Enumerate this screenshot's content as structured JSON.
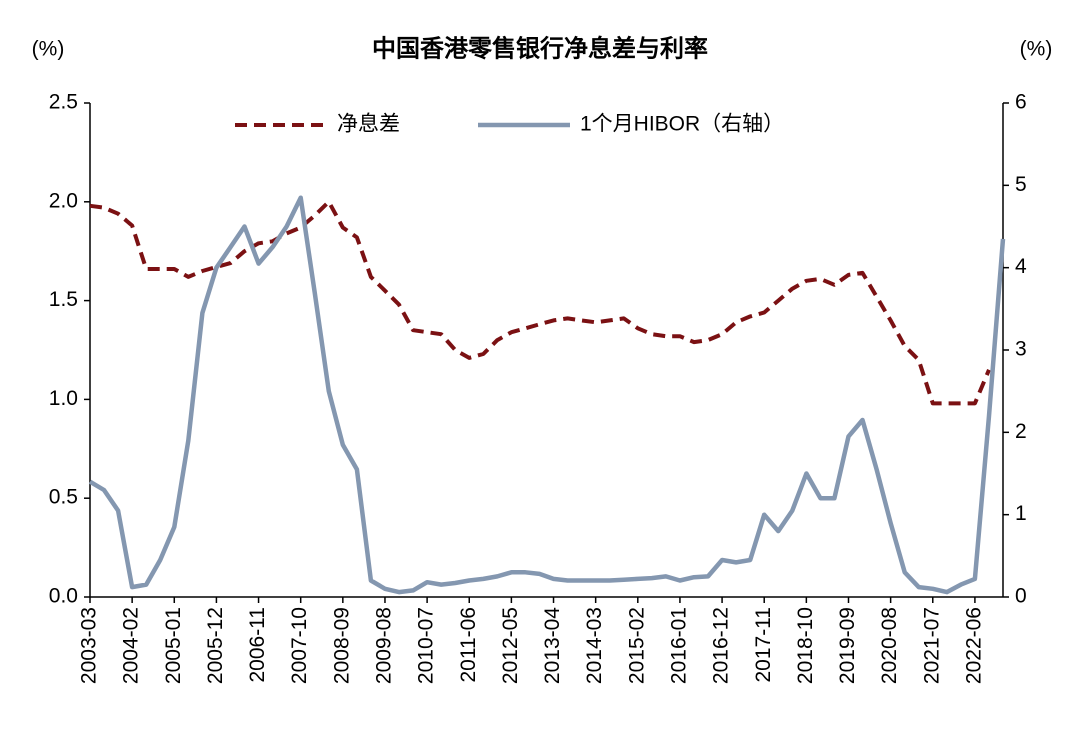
{
  "chart_data": {
    "type": "line",
    "title": "中国香港零售银行净息差与利率",
    "y_label": "(%)",
    "y2_label": "(%)",
    "categories": [
      "2003-03",
      null,
      null,
      "2004-02",
      null,
      null,
      "2005-01",
      null,
      null,
      "2005-12",
      null,
      null,
      "2006-11",
      null,
      null,
      "2007-10",
      null,
      null,
      "2008-09",
      null,
      null,
      "2009-08",
      null,
      null,
      "2010-07",
      null,
      null,
      "2011-06",
      null,
      null,
      "2012-05",
      null,
      null,
      "2013-04",
      null,
      null,
      "2014-03",
      null,
      null,
      "2015-02",
      null,
      null,
      "2016-01",
      null,
      null,
      "2016-12",
      null,
      null,
      "2017-11",
      null,
      null,
      "2018-10",
      null,
      null,
      "2019-09",
      null,
      null,
      "2020-08",
      null,
      null,
      "2021-07",
      null,
      null,
      "2022-06",
      null,
      null
    ],
    "series": [
      {
        "name": "净息差",
        "color": "#7b1113",
        "dashed": true,
        "values": [
          1.98,
          1.97,
          1.94,
          1.88,
          1.66,
          1.66,
          1.66,
          1.62,
          1.65,
          1.67,
          1.69,
          1.75,
          1.79,
          1.8,
          1.84,
          1.87,
          1.93,
          2.0,
          1.87,
          1.82,
          1.62,
          1.55,
          1.48,
          1.35,
          1.34,
          1.33,
          1.25,
          1.21,
          1.23,
          1.3,
          1.34,
          1.36,
          1.38,
          1.4,
          1.41,
          1.4,
          1.39,
          1.4,
          1.41,
          1.36,
          1.33,
          1.32,
          1.32,
          1.29,
          1.3,
          1.33,
          1.39,
          1.42,
          1.44,
          1.5,
          1.56,
          1.6,
          1.61,
          1.58,
          1.63,
          1.64,
          1.52,
          1.4,
          1.27,
          1.2,
          0.98,
          0.98,
          0.98,
          0.98,
          1.15,
          null
        ]
      },
      {
        "name": "1个月HIBOR（右轴）",
        "color": "#8497b0",
        "axis": "y2",
        "values": [
          1.4,
          1.3,
          1.05,
          0.12,
          0.15,
          0.45,
          0.85,
          1.9,
          3.45,
          4.0,
          4.25,
          4.5,
          4.05,
          4.25,
          4.5,
          4.85,
          3.7,
          2.5,
          1.85,
          1.55,
          0.2,
          0.1,
          0.06,
          0.08,
          0.18,
          0.15,
          0.17,
          0.2,
          0.22,
          0.25,
          0.3,
          0.3,
          0.28,
          0.22,
          0.2,
          0.2,
          0.2,
          0.2,
          0.21,
          0.22,
          0.23,
          0.25,
          0.2,
          0.24,
          0.25,
          0.45,
          0.42,
          0.45,
          1.0,
          0.8,
          1.05,
          1.5,
          1.2,
          1.2,
          1.95,
          2.15,
          1.55,
          0.9,
          0.3,
          0.12,
          0.1,
          0.06,
          0.15,
          0.22,
          2.2,
          4.35
        ]
      }
    ],
    "ylim": [
      0,
      2.5
    ],
    "yticks": [
      {
        "value": 0,
        "label": "0.0"
      },
      0.5,
      {
        "value": 1,
        "label": "1.0"
      },
      1.5,
      {
        "value": 2,
        "label": "2.0"
      },
      2.5
    ],
    "y2lim": [
      0,
      6
    ],
    "y2ticks": [
      0,
      1,
      2,
      3,
      4,
      5,
      6
    ],
    "legend": "top"
  }
}
